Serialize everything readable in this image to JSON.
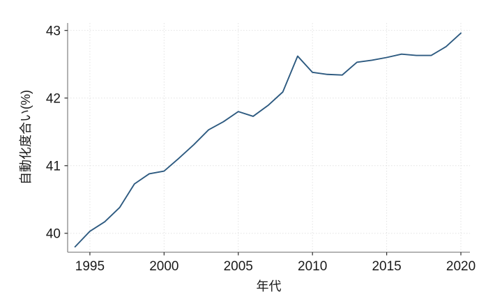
{
  "page": {
    "background": "#ffffff"
  },
  "chart_data": {
    "type": "line",
    "title": "",
    "xlabel": "年代",
    "ylabel": "自動化度合い(%)",
    "x": [
      1994,
      1995,
      1996,
      1997,
      1998,
      1999,
      2000,
      2001,
      2002,
      2003,
      2004,
      2005,
      2006,
      2007,
      2008,
      2009,
      2010,
      2011,
      2012,
      2013,
      2014,
      2015,
      2016,
      2017,
      2018,
      2019,
      2020
    ],
    "series": [
      {
        "name": "自動化度合い",
        "color": "#2d5a80",
        "values": [
          39.8,
          40.03,
          40.17,
          40.38,
          40.73,
          40.88,
          40.92,
          41.11,
          41.31,
          41.53,
          41.65,
          41.8,
          41.73,
          41.89,
          42.09,
          42.62,
          42.38,
          42.35,
          42.34,
          42.53,
          42.56,
          42.6,
          42.65,
          42.63,
          42.63,
          42.76,
          42.96
        ]
      }
    ],
    "xticks": [
      1995,
      2000,
      2005,
      2010,
      2015,
      2020
    ],
    "yticks": [
      40,
      41,
      42,
      43
    ],
    "xlim": [
      1993.5,
      2020.61
    ],
    "ylim": [
      39.72,
      43.11
    ],
    "grid": true,
    "grid_style": "dotted",
    "legend_position": "none",
    "line_width": 1.9,
    "colors": {
      "grid": "#e2e2e2",
      "spine": "#888888",
      "tick": "#2a2a2a",
      "text": "#1a1a1a"
    }
  }
}
